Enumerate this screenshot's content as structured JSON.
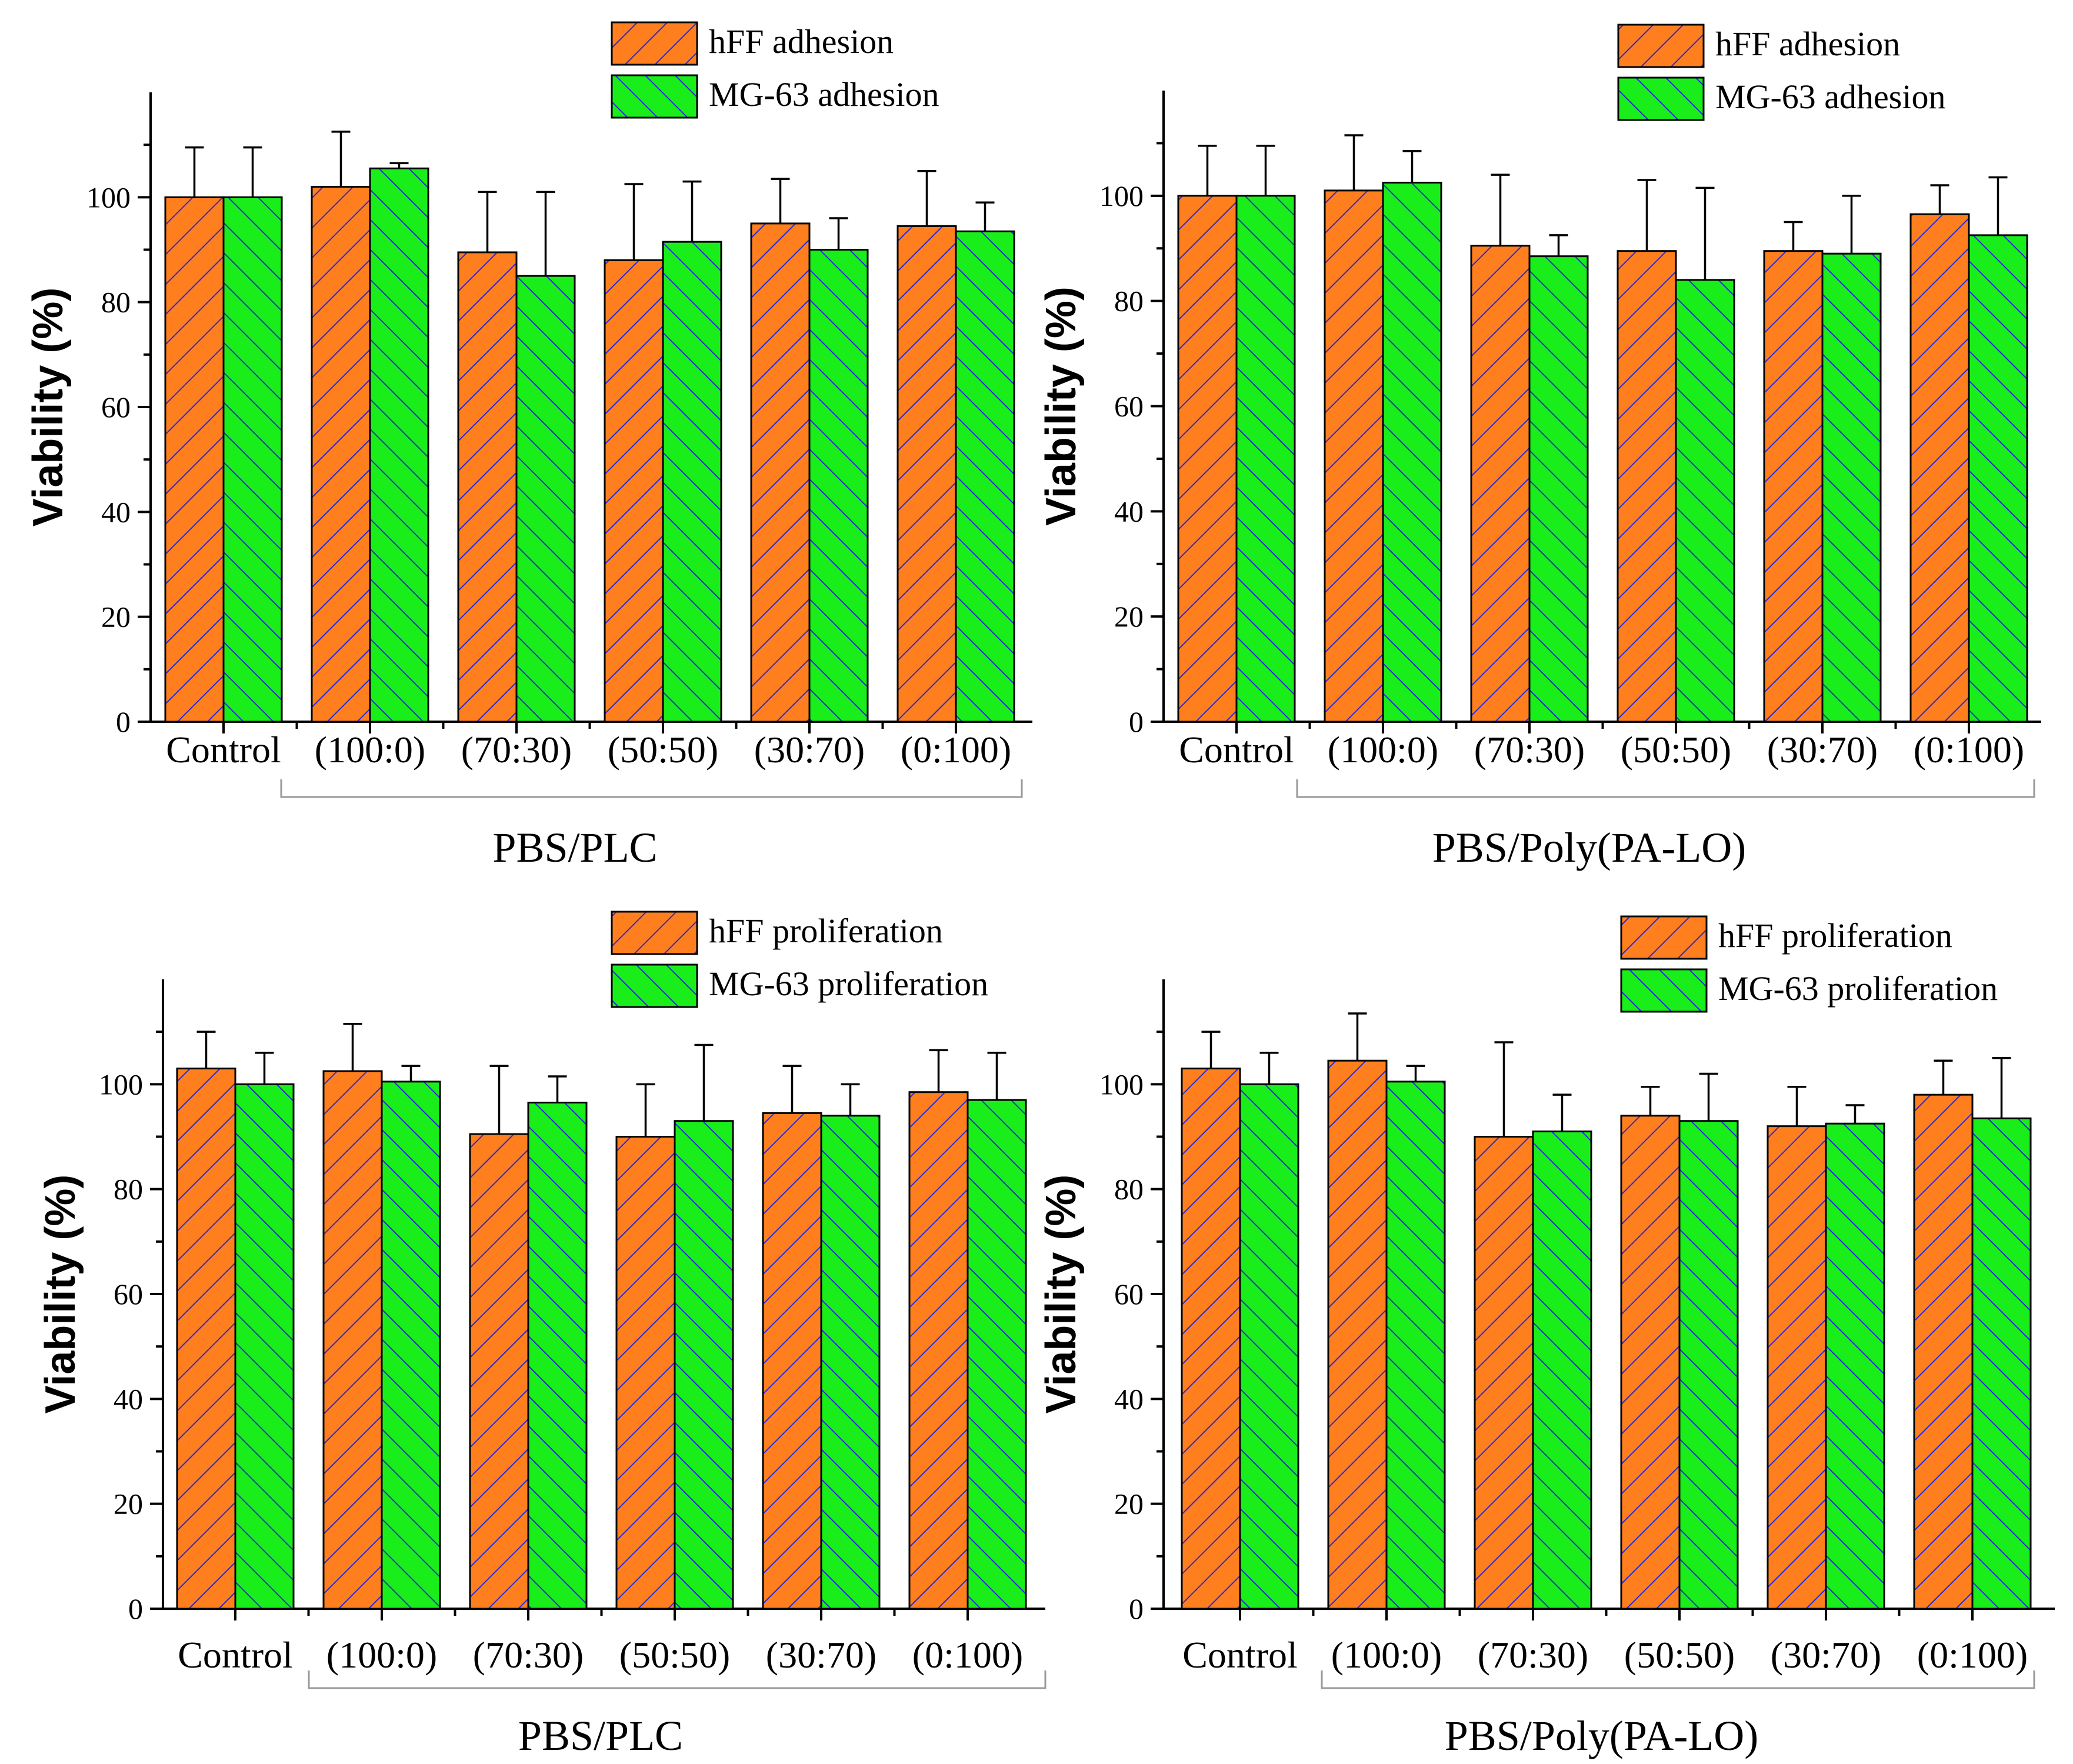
{
  "colors": {
    "hff": "#ff7f1f",
    "mg63": "#1aee1a",
    "hatch": "#2b2bd6",
    "axis": "#000000",
    "bracket": "#999999"
  },
  "chart_data": [
    {
      "type": "bar",
      "ylabel": "Viability (%)",
      "xlabel": "PBS/PLC",
      "ylim": [
        0,
        120
      ],
      "yticks": [
        "0",
        "20",
        "40",
        "60",
        "80",
        "100"
      ],
      "categories": [
        "Control",
        "(100:0)",
        "(70:30)",
        "(50:50)",
        "(30:70)",
        "(0:100)"
      ],
      "legend_position": "top-right",
      "series": [
        {
          "name": "hFF adhesion",
          "values": [
            100,
            102,
            89.5,
            88,
            95,
            94.5
          ],
          "errors": [
            9.5,
            10.5,
            11.5,
            14.5,
            8.5,
            10.5
          ]
        },
        {
          "name": "MG-63 adhesion",
          "values": [
            100,
            105.5,
            85,
            91.5,
            90,
            93.5
          ],
          "errors": [
            9.5,
            1,
            16,
            11.5,
            6,
            5.5
          ]
        }
      ]
    },
    {
      "type": "bar",
      "ylabel": "Viability (%)",
      "xlabel": "PBS/Poly(PA-LO)",
      "ylim": [
        0,
        120
      ],
      "yticks": [
        "0",
        "20",
        "40",
        "60",
        "80",
        "100"
      ],
      "categories": [
        "Control",
        "(100:0)",
        "(70:30)",
        "(50:50)",
        "(30:70)",
        "(0:100)"
      ],
      "legend_position": "top-right",
      "series": [
        {
          "name": "hFF adhesion",
          "values": [
            100,
            101,
            90.5,
            89.5,
            89.5,
            96.5
          ],
          "errors": [
            9.5,
            10.5,
            13.5,
            13.5,
            5.5,
            5.5
          ]
        },
        {
          "name": "MG-63 adhesion",
          "values": [
            100,
            102.5,
            88.5,
            84,
            89,
            92.5
          ],
          "errors": [
            9.5,
            6,
            4,
            17.5,
            11,
            11
          ]
        }
      ]
    },
    {
      "type": "bar",
      "ylabel": "Viability (%)",
      "xlabel": "PBS/PLC",
      "ylim": [
        0,
        120
      ],
      "yticks": [
        "0",
        "20",
        "40",
        "60",
        "80",
        "100"
      ],
      "categories": [
        "Control",
        "(100:0)",
        "(70:30)",
        "(50:50)",
        "(30:70)",
        "(0:100)"
      ],
      "legend_position": "top-right",
      "series": [
        {
          "name": "hFF proliferation",
          "values": [
            103,
            102.5,
            90.5,
            90,
            94.5,
            98.5
          ],
          "errors": [
            7,
            9,
            13,
            10,
            9,
            8
          ]
        },
        {
          "name": "MG-63 proliferation",
          "values": [
            100,
            100.5,
            96.5,
            93,
            94,
            97
          ],
          "errors": [
            6,
            3,
            5,
            14.5,
            6,
            9
          ]
        }
      ]
    },
    {
      "type": "bar",
      "ylabel": "Viability (%)",
      "xlabel": "PBS/Poly(PA-LO)",
      "ylim": [
        0,
        120
      ],
      "yticks": [
        "0",
        "20",
        "40",
        "60",
        "80",
        "100"
      ],
      "categories": [
        "Control",
        "(100:0)",
        "(70:30)",
        "(50:50)",
        "(30:70)",
        "(0:100)"
      ],
      "legend_position": "top-right",
      "series": [
        {
          "name": "hFF proliferation",
          "values": [
            103,
            104.5,
            90,
            94,
            92,
            98
          ],
          "errors": [
            7,
            9,
            18,
            5.5,
            7.5,
            6.5
          ]
        },
        {
          "name": "MG-63 proliferation",
          "values": [
            100,
            100.5,
            91,
            93,
            92.5,
            93.5
          ],
          "errors": [
            6,
            3,
            7,
            9,
            3.5,
            11.5
          ]
        }
      ]
    }
  ]
}
